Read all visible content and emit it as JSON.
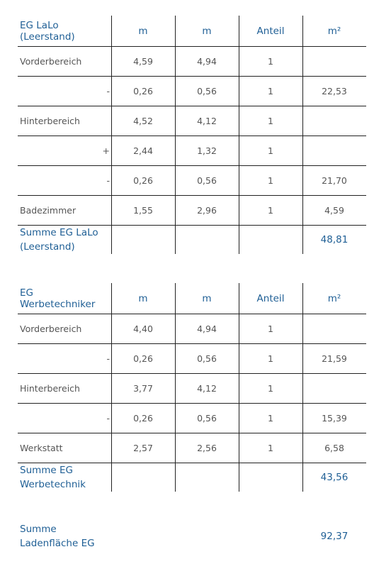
{
  "tables": [
    {
      "header": [
        "EG LaLo (Leerstand)",
        "m",
        "m",
        "Anteil",
        "m²"
      ],
      "rows": [
        [
          "Vorderbereich",
          "4,59",
          "4,94",
          "1",
          null
        ],
        [
          "-",
          "0,26",
          "0,56",
          "1",
          "22,53"
        ],
        [
          "Hinterbereich",
          "4,52",
          "4,12",
          "1",
          null
        ],
        [
          "+",
          "2,44",
          "1,32",
          "1",
          null
        ],
        [
          "-",
          "0,26",
          "0,56",
          "1",
          "21,70"
        ],
        [
          "Badezimmer",
          "1,55",
          "2,96",
          "1",
          "4,59"
        ]
      ],
      "sum": {
        "label": "Summe EG LaLo (Leerstand)",
        "value": "48,81"
      }
    },
    {
      "header": [
        "EG Werbetechniker",
        "m",
        "m",
        "Anteil",
        "m²"
      ],
      "rows": [
        [
          "Vorderbereich",
          "4,40",
          "4,94",
          "1",
          null
        ],
        [
          "-",
          "0,26",
          "0,56",
          "1",
          "21,59"
        ],
        [
          "Hinterbereich",
          "3,77",
          "4,12",
          "1",
          null
        ],
        [
          "-",
          "0,26",
          "0,56",
          "1",
          "15,39"
        ],
        [
          "Werkstatt",
          "2,57",
          "2,56",
          "1",
          "6,58"
        ]
      ],
      "sum": {
        "label": "Summe EG Werbetechnik",
        "value": "43,56"
      }
    }
  ],
  "total": {
    "label": "Summe Ladenfläche EG",
    "value": "92,37"
  }
}
